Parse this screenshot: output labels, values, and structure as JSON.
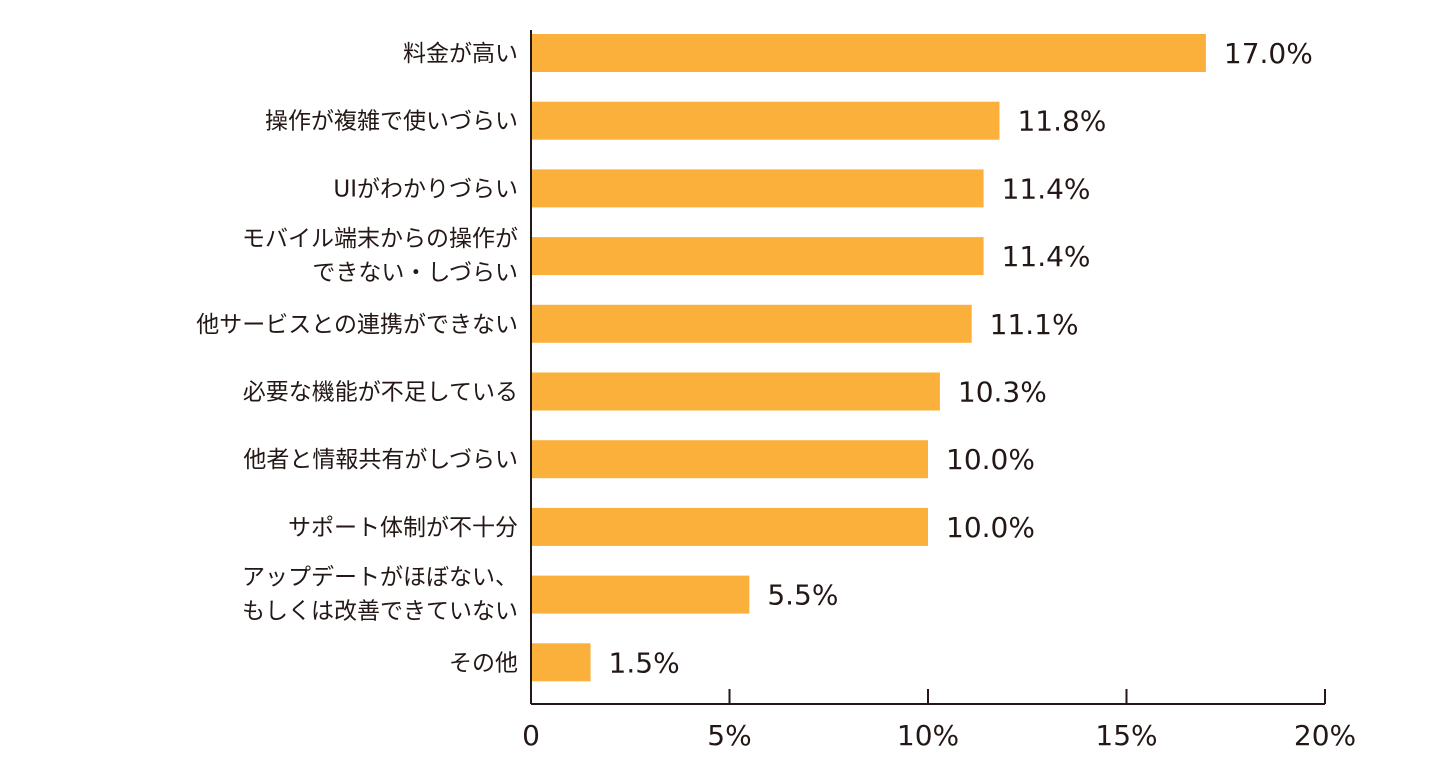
{
  "chart_data": {
    "type": "bar",
    "orientation": "horizontal",
    "title": "",
    "xlabel": "",
    "ylabel": "",
    "xlim": [
      0,
      20
    ],
    "grid": false,
    "bar_color": "#FBB03B",
    "categories": [
      [
        "料金が高い"
      ],
      [
        "操作が複雑で使いづらい"
      ],
      [
        "UIがわかりづらい"
      ],
      [
        "モバイル端末からの操作が",
        "できない・しづらい"
      ],
      [
        "他サービスとの連携ができない"
      ],
      [
        "必要な機能が不足している"
      ],
      [
        "他者と情報共有がしづらい"
      ],
      [
        "サポート体制が不十分"
      ],
      [
        "アップデートがほぼない、",
        "もしくは改善できていない"
      ],
      [
        "その他"
      ]
    ],
    "values": [
      17.0,
      11.8,
      11.4,
      11.4,
      11.1,
      10.3,
      10.0,
      10.0,
      5.5,
      1.5
    ],
    "value_labels": [
      "17.0%",
      "11.8%",
      "11.4%",
      "11.4%",
      "11.1%",
      "10.3%",
      "10.0%",
      "10.0%",
      "5.5%",
      "1.5%"
    ],
    "ticks": [
      0,
      5,
      10,
      15,
      20
    ],
    "tick_labels": [
      "0",
      "5%",
      "10%",
      "15%",
      "20%"
    ]
  }
}
